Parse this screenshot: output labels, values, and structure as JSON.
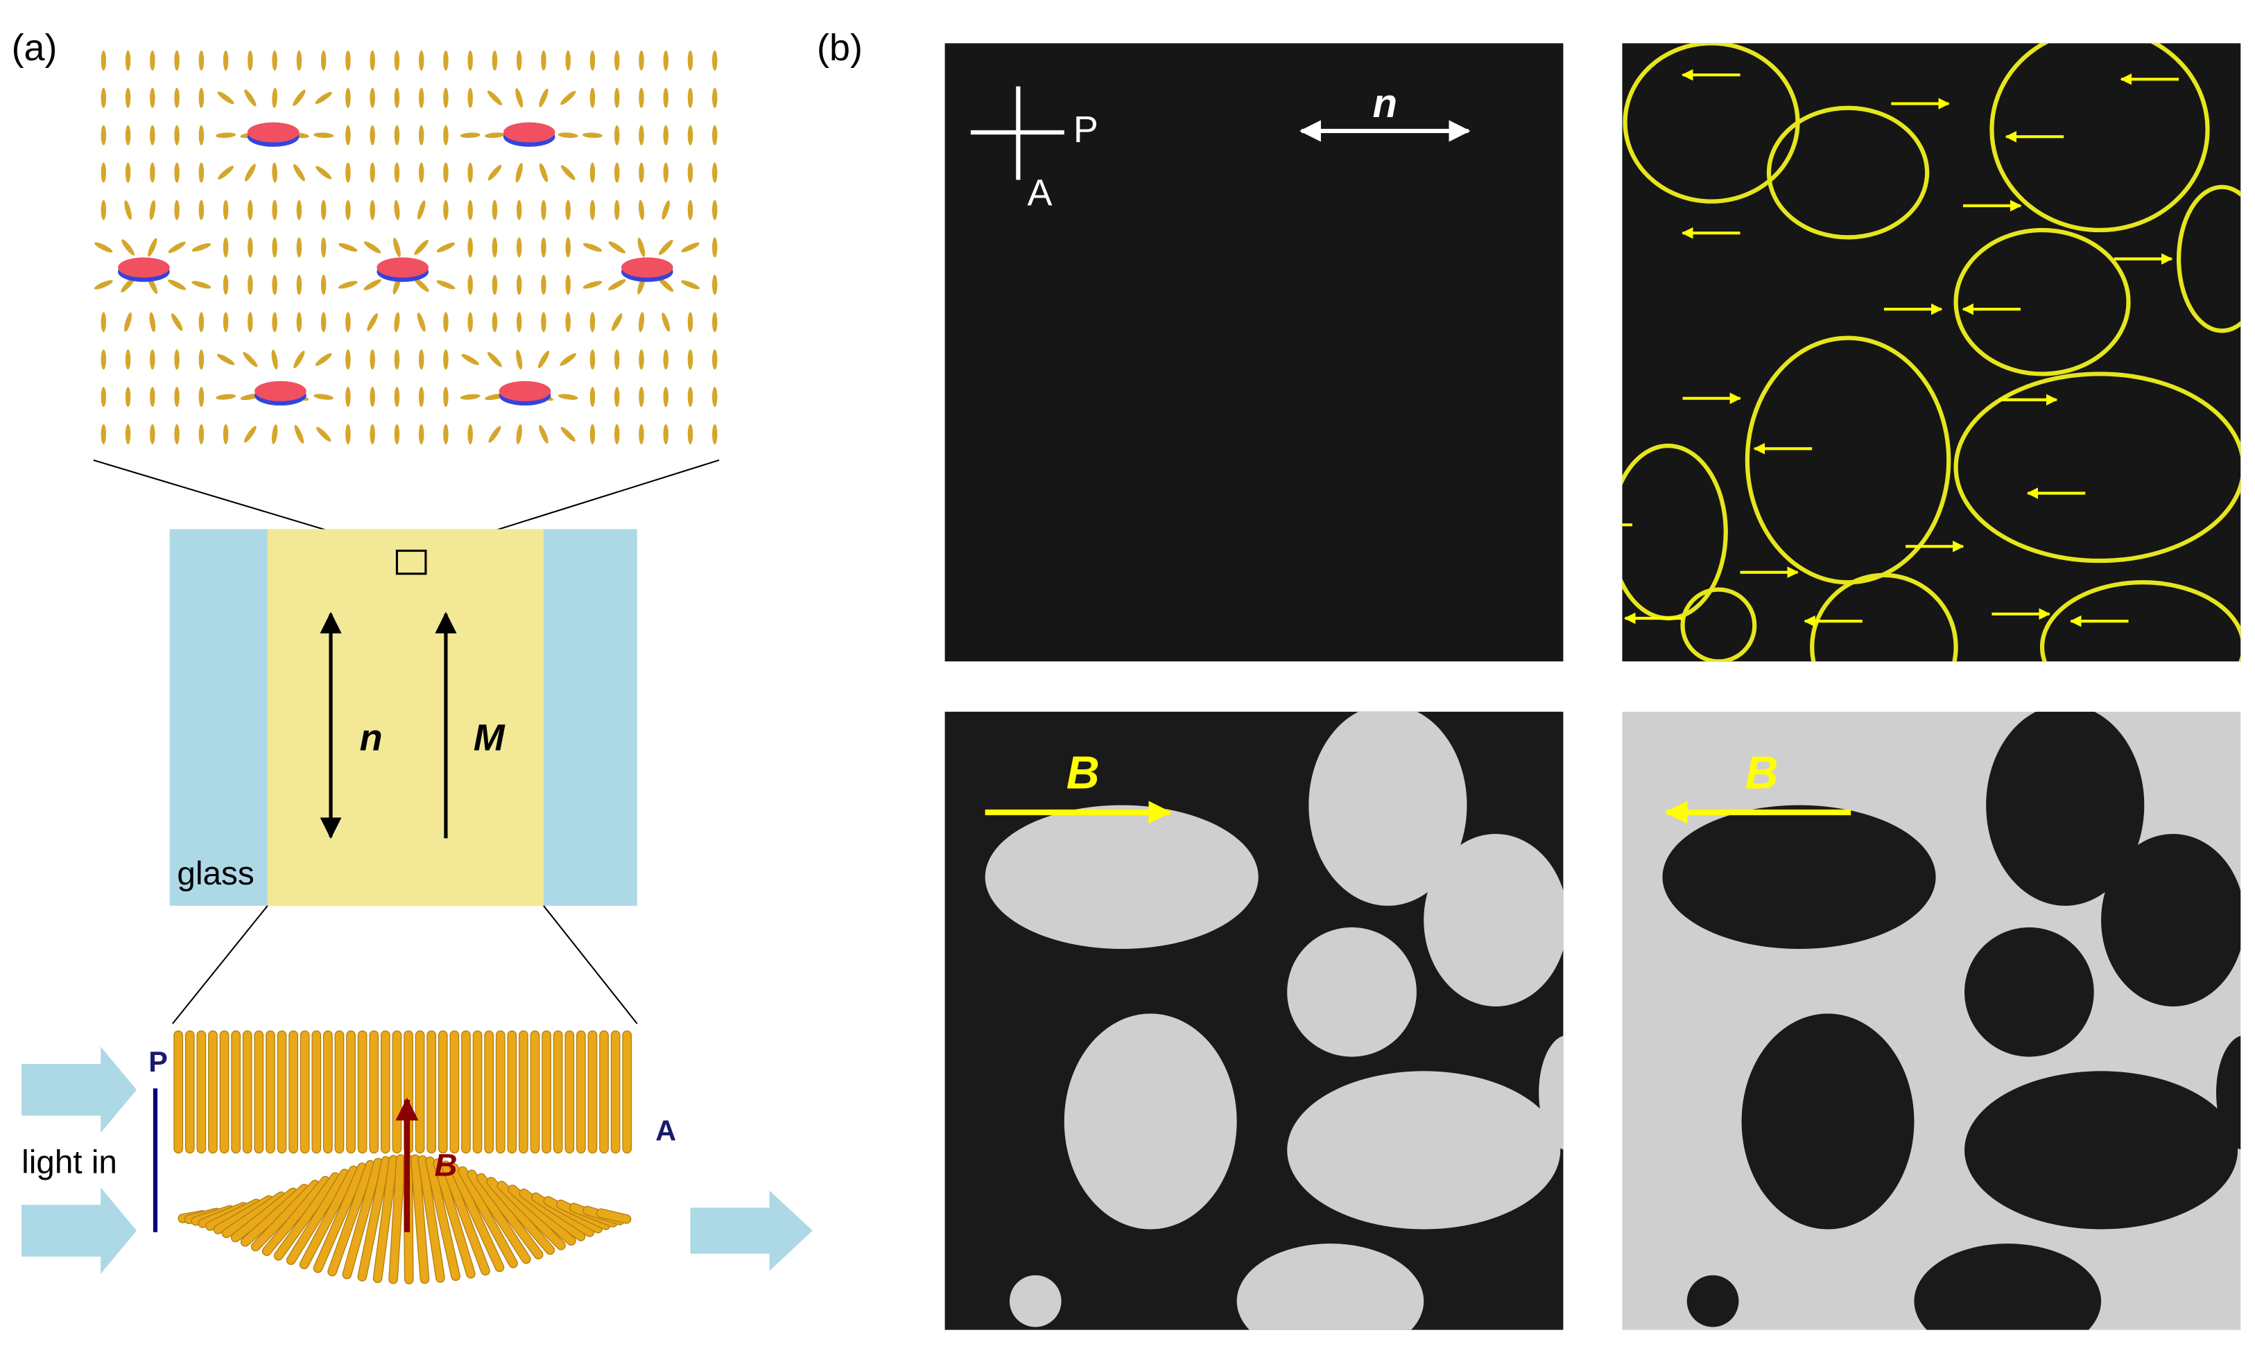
{
  "panel_a": {
    "label": "(a)",
    "cell": {
      "director": "n",
      "magnetization": "M",
      "substrate": "glass"
    },
    "optics": {
      "polarizer": "P",
      "light": "light in",
      "field": "B",
      "analyzer": "A"
    }
  },
  "panel_b": {
    "label": "(b)",
    "polarizer": "P",
    "analyzer": "A",
    "director": "n",
    "field_right": "B",
    "field_left": "B"
  }
}
